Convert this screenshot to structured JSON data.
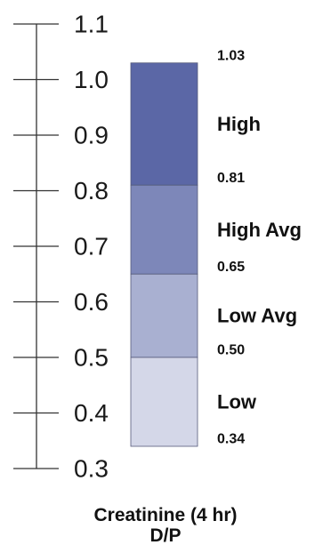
{
  "chart_data": {
    "type": "bar",
    "title": "",
    "xlabel": "Creatinine (4 hr)",
    "xlabel_line2": "D/P",
    "ylabel": "",
    "ylim": [
      0.3,
      1.1
    ],
    "y_ticks": [
      1.1,
      1.0,
      0.9,
      0.8,
      0.7,
      0.6,
      0.5,
      0.4,
      0.3
    ],
    "y_tick_labels": [
      "1.1",
      "1.0",
      "0.9",
      "0.8",
      "0.7",
      "0.6",
      "0.5",
      "0.4",
      "0.3"
    ],
    "grid": false,
    "legend": "none",
    "categories": [
      "High",
      "High Avg",
      "Low Avg",
      "Low"
    ],
    "ranges": [
      {
        "name": "High",
        "low": 0.81,
        "high": 1.03,
        "color": "#5b67a6"
      },
      {
        "name": "High Avg",
        "low": 0.65,
        "high": 0.81,
        "color": "#7d87b9"
      },
      {
        "name": "Low Avg",
        "low": 0.5,
        "high": 0.65,
        "color": "#a9b0d1"
      },
      {
        "name": "Low",
        "low": 0.34,
        "high": 0.5,
        "color": "#d4d7e8"
      }
    ],
    "boundary_values": [
      1.03,
      0.81,
      0.65,
      0.5,
      0.34
    ],
    "boundary_labels": [
      "1.03",
      "0.81",
      "0.65",
      "0.50",
      "0.34"
    ]
  }
}
